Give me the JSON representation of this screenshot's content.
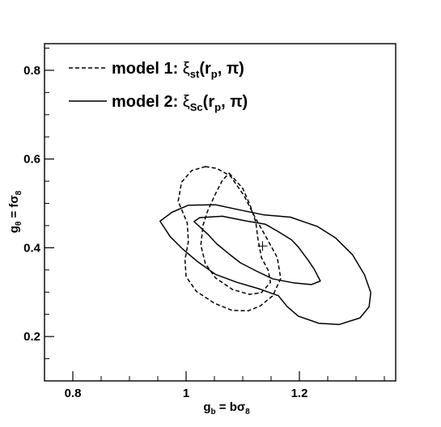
{
  "chart_data": {
    "type": "contour",
    "xlabel": "g_b = bσ_8",
    "ylabel": "g_θ = fσ_8",
    "xlim": [
      0.75,
      1.37
    ],
    "ylim": [
      0.1,
      0.86
    ],
    "x_ticks": [
      0.8,
      1,
      1.2
    ],
    "y_ticks": [
      0.2,
      0.4,
      0.6,
      0.8
    ],
    "x_tick_labels": [
      "0.8",
      "1",
      "1.2"
    ],
    "y_tick_labels": [
      "0.2",
      "0.4",
      "0.6",
      "0.8"
    ],
    "grid": false,
    "legend_position": "top-left",
    "legend": [
      {
        "series": "model1",
        "prefix": "model 1: ",
        "xi": "ξ",
        "sub": "st",
        "open": "(r",
        "sub2": "p",
        "close": ", π)"
      },
      {
        "series": "model2",
        "prefix": "model 2: ",
        "xi": "ξ",
        "sub": "Sc",
        "open": "(r",
        "sub2": "p",
        "close": ", π)"
      }
    ],
    "fiducial_marker": {
      "x": 1.135,
      "y": 0.404
    },
    "series": [
      {
        "id": "model1",
        "line_style": "dashed",
        "contours": [
          [
            [
              1.076,
              0.568
            ],
            [
              1.1,
              0.534
            ],
            [
              1.113,
              0.496
            ],
            [
              1.123,
              0.458
            ],
            [
              1.127,
              0.418
            ],
            [
              1.133,
              0.378
            ],
            [
              1.145,
              0.349
            ],
            [
              1.149,
              0.322
            ],
            [
              1.133,
              0.299
            ],
            [
              1.112,
              0.295
            ],
            [
              1.082,
              0.306
            ],
            [
              1.052,
              0.332
            ],
            [
              1.034,
              0.364
            ],
            [
              1.026,
              0.406
            ],
            [
              1.03,
              0.451
            ],
            [
              1.038,
              0.483
            ],
            [
              1.052,
              0.522
            ],
            [
              1.064,
              0.552
            ],
            [
              1.076,
              0.568
            ]
          ],
          [
            [
              1.034,
              0.583
            ],
            [
              1.054,
              0.579
            ],
            [
              1.078,
              0.562
            ],
            [
              1.102,
              0.518
            ],
            [
              1.122,
              0.468
            ],
            [
              1.143,
              0.42
            ],
            [
              1.161,
              0.378
            ],
            [
              1.167,
              0.331
            ],
            [
              1.153,
              0.292
            ],
            [
              1.131,
              0.269
            ],
            [
              1.11,
              0.258
            ],
            [
              1.081,
              0.259
            ],
            [
              1.05,
              0.275
            ],
            [
              1.018,
              0.302
            ],
            [
              1.0,
              0.335
            ],
            [
              0.998,
              0.373
            ],
            [
              1.004,
              0.414
            ],
            [
              1.002,
              0.456
            ],
            [
              0.986,
              0.505
            ],
            [
              0.992,
              0.548
            ],
            [
              1.01,
              0.574
            ],
            [
              1.034,
              0.583
            ]
          ]
        ]
      },
      {
        "id": "model2",
        "line_style": "solid",
        "contours": [
          [
            [
              1.014,
              0.459
            ],
            [
              1.024,
              0.468
            ],
            [
              1.064,
              0.471
            ],
            [
              1.108,
              0.46
            ],
            [
              1.14,
              0.453
            ],
            [
              1.162,
              0.437
            ],
            [
              1.186,
              0.418
            ],
            [
              1.198,
              0.402
            ],
            [
              1.216,
              0.371
            ],
            [
              1.226,
              0.352
            ],
            [
              1.237,
              0.325
            ],
            [
              1.221,
              0.317
            ],
            [
              1.189,
              0.321
            ],
            [
              1.153,
              0.33
            ],
            [
              1.125,
              0.347
            ],
            [
              1.096,
              0.366
            ],
            [
              1.076,
              0.386
            ],
            [
              1.054,
              0.409
            ],
            [
              1.038,
              0.431
            ],
            [
              1.014,
              0.459
            ]
          ],
          [
            [
              0.954,
              0.46
            ],
            [
              0.975,
              0.48
            ],
            [
              1.004,
              0.496
            ],
            [
              1.052,
              0.497
            ],
            [
              1.092,
              0.486
            ],
            [
              1.138,
              0.474
            ],
            [
              1.184,
              0.469
            ],
            [
              1.232,
              0.448
            ],
            [
              1.264,
              0.422
            ],
            [
              1.294,
              0.384
            ],
            [
              1.315,
              0.339
            ],
            [
              1.326,
              0.299
            ],
            [
              1.323,
              0.267
            ],
            [
              1.307,
              0.242
            ],
            [
              1.27,
              0.227
            ],
            [
              1.234,
              0.23
            ],
            [
              1.198,
              0.246
            ],
            [
              1.178,
              0.268
            ],
            [
              1.163,
              0.292
            ],
            [
              1.13,
              0.307
            ],
            [
              1.09,
              0.322
            ],
            [
              1.052,
              0.34
            ],
            [
              1.02,
              0.369
            ],
            [
              0.994,
              0.397
            ],
            [
              0.972,
              0.425
            ],
            [
              0.954,
              0.46
            ]
          ]
        ]
      }
    ]
  }
}
